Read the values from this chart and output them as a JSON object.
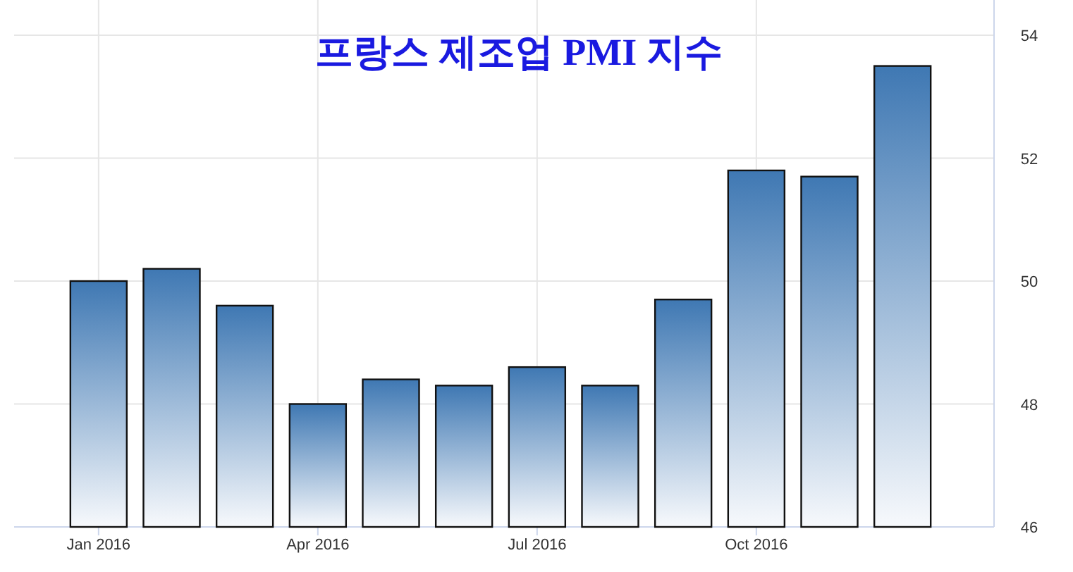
{
  "chart_data": {
    "type": "bar",
    "title": "프랑스 제조업 PMI 지수",
    "categories": [
      "Jan 2016",
      null,
      null,
      "Apr 2016",
      null,
      null,
      "Jul 2016",
      null,
      null,
      "Oct 2016",
      null,
      null
    ],
    "values": [
      50.0,
      50.2,
      49.6,
      48.0,
      48.4,
      48.3,
      48.6,
      48.3,
      49.7,
      51.8,
      51.7,
      53.5
    ],
    "color": "#3f78b3",
    "ylim": [
      46,
      54
    ],
    "yticks": [
      46,
      48,
      50,
      52,
      54
    ],
    "grid": true
  }
}
